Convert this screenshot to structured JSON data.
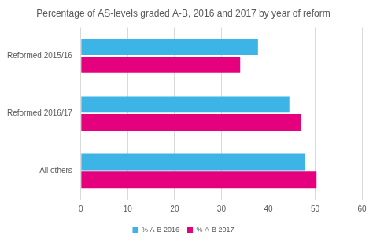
{
  "chart_data": {
    "type": "bar",
    "orientation": "horizontal",
    "title": "Percentage of AS-levels graded A-B, 2016 and 2017 by year of reform",
    "categories": [
      "Reformed 2015/16",
      "Reformed 2016/17",
      "All others"
    ],
    "series": [
      {
        "name": "% A-B 2016",
        "color": "#3cb4e6",
        "values": [
          37.8,
          44.5,
          47.8
        ]
      },
      {
        "name": "% A-B 2017",
        "color": "#e5007e",
        "values": [
          34.0,
          47.0,
          50.3
        ]
      }
    ],
    "xlim": [
      0,
      60
    ],
    "xticks": [
      0,
      10,
      20,
      30,
      40,
      50,
      60
    ],
    "grid": true,
    "legend": "bottom"
  }
}
